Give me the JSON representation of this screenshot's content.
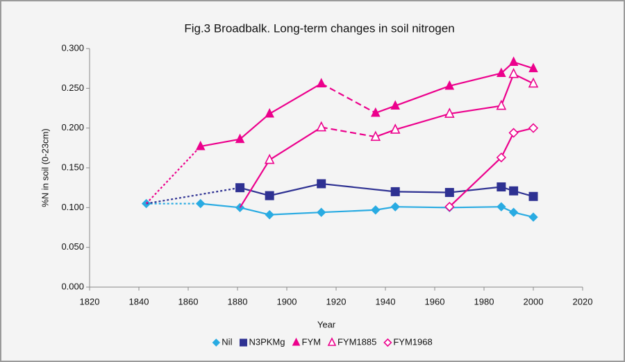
{
  "chart_data": {
    "type": "line",
    "title": "Fig.3 Broadbalk. Long-term changes in soil nitrogen",
    "x_label": "Year",
    "y_label": "%N in soil (0-23cm)",
    "xlim": [
      1820,
      2020
    ],
    "xticks": [
      1820,
      1840,
      1860,
      1880,
      1900,
      1920,
      1940,
      1960,
      1980,
      2000,
      2020
    ],
    "ylim": [
      0,
      0.3
    ],
    "yticks": [
      {
        "value": 0,
        "label": "0.000"
      },
      {
        "value": 0.05,
        "label": "0.050"
      },
      {
        "value": 0.1,
        "label": "0.100"
      },
      {
        "value": 0.15,
        "label": "0.150"
      },
      {
        "value": 0.2,
        "label": "0.200"
      },
      {
        "value": 0.25,
        "label": "0.250"
      },
      {
        "value": 0.3,
        "label": "0.300"
      }
    ],
    "grid": false,
    "legend": "bottom",
    "series": [
      {
        "name": "Nil",
        "color": "#29abe2",
        "marker": "diamond",
        "filled": true,
        "hide_first_marker": false,
        "x": [
          1843,
          1865,
          1881,
          1893,
          1914,
          1936,
          1944,
          1966,
          1987,
          1992,
          2000
        ],
        "values": [
          0.105,
          0.105,
          0.1,
          0.091,
          0.094,
          0.097,
          0.101,
          0.1,
          0.101,
          0.094,
          0.088
        ],
        "segment_styles": [
          "dotted",
          "solid",
          "solid",
          "solid",
          "solid",
          "solid",
          "solid",
          "solid",
          "solid",
          "solid"
        ]
      },
      {
        "name": "N3PKMg",
        "color": "#2e3192",
        "marker": "square",
        "filled": true,
        "hide_first_marker": true,
        "x": [
          1843,
          1881,
          1893,
          1914,
          1944,
          1966,
          1987,
          1992,
          2000
        ],
        "values": [
          0.105,
          0.125,
          0.115,
          0.13,
          0.12,
          0.119,
          0.126,
          0.121,
          0.114
        ],
        "segment_styles": [
          "dotted",
          "solid",
          "solid",
          "solid",
          "solid",
          "solid",
          "solid",
          "solid"
        ]
      },
      {
        "name": "FYM",
        "color": "#ec008c",
        "marker": "triangle",
        "filled": true,
        "hide_first_marker": true,
        "x": [
          1843,
          1865,
          1881,
          1893,
          1914,
          1936,
          1944,
          1966,
          1987,
          1992,
          2000
        ],
        "values": [
          0.105,
          0.177,
          0.186,
          0.218,
          0.256,
          0.219,
          0.228,
          0.253,
          0.269,
          0.283,
          0.275
        ],
        "segment_styles": [
          "dotted",
          "solid",
          "solid",
          "solid",
          "dashed",
          "solid",
          "solid",
          "solid",
          "solid",
          "solid"
        ]
      },
      {
        "name": "FYM1885",
        "color": "#ec008c",
        "marker": "triangle",
        "filled": false,
        "hide_first_marker": true,
        "x": [
          1881,
          1893,
          1914,
          1936,
          1944,
          1966,
          1987,
          1992,
          2000
        ],
        "values": [
          0.1,
          0.16,
          0.201,
          0.189,
          0.198,
          0.218,
          0.228,
          0.268,
          0.256
        ],
        "segment_styles": [
          "solid",
          "solid",
          "dashed",
          "solid",
          "solid",
          "solid",
          "solid",
          "solid"
        ]
      },
      {
        "name": "FYM1968",
        "color": "#ec008c",
        "marker": "diamond",
        "filled": false,
        "hide_first_marker": false,
        "x": [
          1966,
          1987,
          1992,
          2000
        ],
        "values": [
          0.101,
          0.163,
          0.194,
          0.2
        ],
        "segment_styles": [
          "solid",
          "solid",
          "solid"
        ]
      }
    ]
  }
}
